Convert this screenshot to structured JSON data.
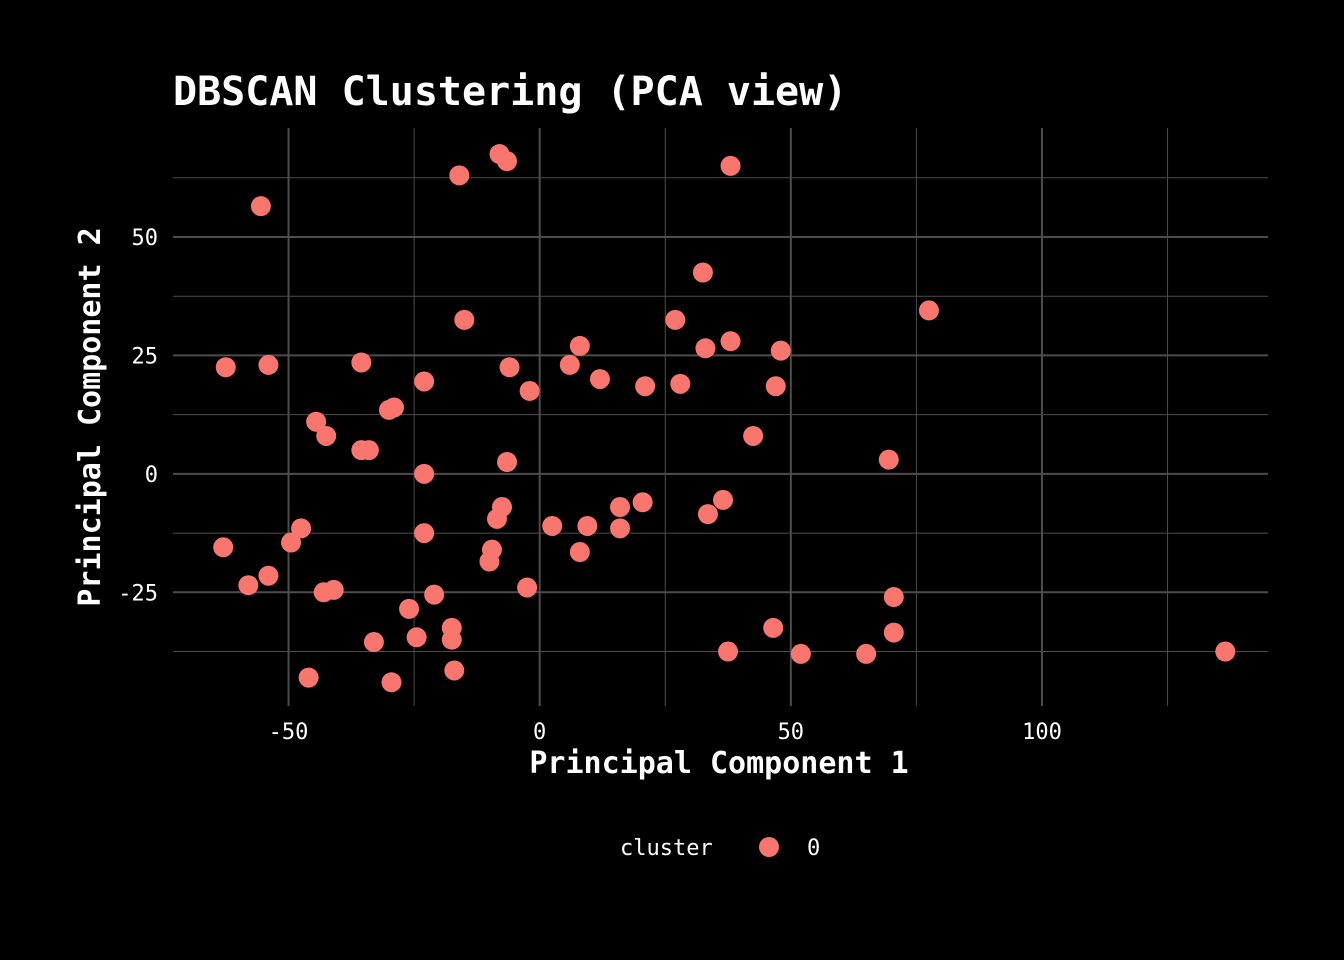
{
  "chart_data": {
    "type": "scatter",
    "title": "DBSCAN Clustering (PCA view)",
    "xlabel": "Principal Component 1",
    "ylabel": "Principal Component 2",
    "xlim": [
      -73,
      145
    ],
    "ylim": [
      -49,
      73
    ],
    "x_ticks": [
      -50,
      0,
      50,
      100
    ],
    "y_ticks": [
      -25,
      0,
      25,
      50
    ],
    "grid": true,
    "legend_position": "bottom",
    "legend_title": "cluster",
    "colors": {
      "background": "#000000",
      "grid": "#4d4d4d",
      "text": "#ffffff",
      "point": "#f8766d"
    },
    "series": [
      {
        "name": "0",
        "points": [
          [
            -8,
            67.5
          ],
          [
            -6.5,
            66
          ],
          [
            -16,
            63
          ],
          [
            38,
            65
          ],
          [
            -55.5,
            56.5
          ],
          [
            32.5,
            42.5
          ],
          [
            77.5,
            34.5
          ],
          [
            -15,
            32.5
          ],
          [
            27,
            32.5
          ],
          [
            8,
            27
          ],
          [
            33,
            26.5
          ],
          [
            38,
            28
          ],
          [
            48,
            26
          ],
          [
            -62.5,
            22.5
          ],
          [
            -54,
            23
          ],
          [
            -35.5,
            23.5
          ],
          [
            -6,
            22.5
          ],
          [
            6,
            23
          ],
          [
            12,
            20
          ],
          [
            -23,
            19.5
          ],
          [
            21,
            18.5
          ],
          [
            28,
            19
          ],
          [
            47,
            18.5
          ],
          [
            -2,
            17.5
          ],
          [
            -30,
            13.5
          ],
          [
            -29,
            14
          ],
          [
            -44.5,
            11
          ],
          [
            -42.5,
            8
          ],
          [
            42.5,
            8
          ],
          [
            -35.5,
            5
          ],
          [
            -34,
            5
          ],
          [
            -6.5,
            2.5
          ],
          [
            69.5,
            3
          ],
          [
            -23,
            0
          ],
          [
            -7.5,
            -7
          ],
          [
            -8.5,
            -9.5
          ],
          [
            16,
            -7
          ],
          [
            20.5,
            -6
          ],
          [
            36.5,
            -5.5
          ],
          [
            33.5,
            -8.5
          ],
          [
            2.5,
            -11
          ],
          [
            9.5,
            -11
          ],
          [
            16,
            -11.5
          ],
          [
            -47.5,
            -11.5
          ],
          [
            -23,
            -12.5
          ],
          [
            -49.5,
            -14.5
          ],
          [
            -63,
            -15.5
          ],
          [
            -9.5,
            -16
          ],
          [
            8,
            -16.5
          ],
          [
            -10,
            -18.5
          ],
          [
            -58,
            -23.5
          ],
          [
            -54,
            -21.5
          ],
          [
            -43,
            -25
          ],
          [
            -41,
            -24.5
          ],
          [
            -2.5,
            -24
          ],
          [
            -21,
            -25.5
          ],
          [
            70.5,
            -26
          ],
          [
            -26,
            -28.5
          ],
          [
            -17.5,
            -32.5
          ],
          [
            -24.5,
            -34.5
          ],
          [
            -17.5,
            -35
          ],
          [
            -33,
            -35.5
          ],
          [
            46.5,
            -32.5
          ],
          [
            70.5,
            -33.5
          ],
          [
            -17,
            -41.5
          ],
          [
            -46,
            -43
          ],
          [
            -29.5,
            -44
          ],
          [
            37.5,
            -37.5
          ],
          [
            52,
            -38
          ],
          [
            65,
            -38
          ],
          [
            136.5,
            -37.5
          ]
        ]
      }
    ]
  }
}
